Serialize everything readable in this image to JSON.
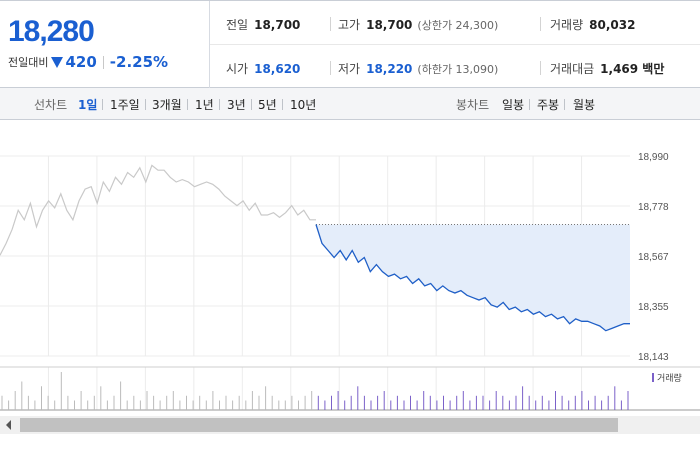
{
  "quote": {
    "current_price": "18,280",
    "change_label": "전일대비",
    "change_direction_icon": "down-triangle-icon",
    "change_amount": "420",
    "change_percent": "-2.25%",
    "stats": {
      "prev_close": {
        "label": "전일",
        "value": "18,700"
      },
      "high": {
        "label": "고가",
        "value": "18,700",
        "sub": "(상한가 24,300)"
      },
      "volume": {
        "label": "거래량",
        "value": "80,032"
      },
      "open": {
        "label": "시가",
        "value": "18,620"
      },
      "low": {
        "label": "저가",
        "value": "18,220",
        "sub": "(하한가 13,090)"
      },
      "trade_value": {
        "label": "거래대금",
        "value": "1,469 백만"
      }
    }
  },
  "toolbar": {
    "line_chart_label": "선차트",
    "line_tabs": [
      "1일",
      "1주일",
      "3개월",
      "1년",
      "3년",
      "5년",
      "10년"
    ],
    "active_line_tab": "1일",
    "candle_chart_label": "봉차트",
    "candle_tabs": [
      "일봉",
      "주봉",
      "월봉"
    ]
  },
  "colors": {
    "accent_blue": "#1a5fd1",
    "prev_day_line": "#c9c9c9",
    "today_line": "#1f5fc7",
    "fill": "#e4edfa",
    "volume_bar": "#7b61c9"
  },
  "chart_data": {
    "type": "line",
    "ylim": [
      18143,
      18990
    ],
    "y_ticks": [
      "18,990",
      "18,778",
      "18,567",
      "18,355",
      "18,143"
    ],
    "reference_line": 18700,
    "legend": "거래량",
    "series": [
      {
        "values": [
          18570,
          18620,
          18680,
          18760,
          18720,
          18790,
          18690,
          18760,
          18800,
          18770,
          18830,
          18760,
          18720,
          18800,
          18850,
          18860,
          18790,
          18880,
          18840,
          18900,
          18870,
          18920,
          18900,
          18940,
          18880,
          18950,
          18930,
          18930,
          18900,
          18880,
          18890,
          18880,
          18860,
          18870,
          18880,
          18870,
          18850,
          18820,
          18800,
          18780,
          18800,
          18760,
          18790,
          18740,
          18740,
          18750,
          18730,
          18750,
          18780,
          18740,
          18760,
          18720,
          18720
        ]
      },
      {
        "values": [
          18700,
          18620,
          18590,
          18560,
          18590,
          18550,
          18590,
          18540,
          18560,
          18500,
          18530,
          18500,
          18480,
          18490,
          18470,
          18480,
          18450,
          18470,
          18440,
          18450,
          18420,
          18440,
          18420,
          18410,
          18420,
          18400,
          18390,
          18380,
          18390,
          18360,
          18350,
          18370,
          18340,
          18350,
          18330,
          18340,
          18320,
          18330,
          18310,
          18320,
          18300,
          18310,
          18280,
          18300,
          18290,
          18290,
          18280,
          18270,
          18250,
          18260,
          18270,
          18280,
          18280
        ]
      }
    ],
    "volume": [
      3,
      2,
      4,
      6,
      3,
      2,
      5,
      3,
      2,
      8,
      3,
      2,
      4,
      2,
      3,
      5,
      2,
      3,
      6,
      2,
      3,
      2,
      4,
      3,
      2,
      3,
      4,
      2,
      3,
      2,
      3,
      2,
      4,
      2,
      3,
      2,
      3,
      2,
      4,
      3,
      5,
      3,
      2,
      2,
      3,
      2,
      3,
      4,
      3,
      2,
      3,
      4,
      2,
      3,
      5,
      3,
      2,
      3,
      4,
      2,
      3,
      2,
      3,
      2,
      4,
      3,
      2,
      3,
      2,
      3,
      4,
      2,
      3,
      3,
      2,
      4,
      3,
      2,
      3,
      5,
      3,
      2,
      3,
      2,
      4,
      3,
      2,
      3,
      4,
      2,
      3,
      2,
      3,
      5,
      2,
      4
    ]
  }
}
